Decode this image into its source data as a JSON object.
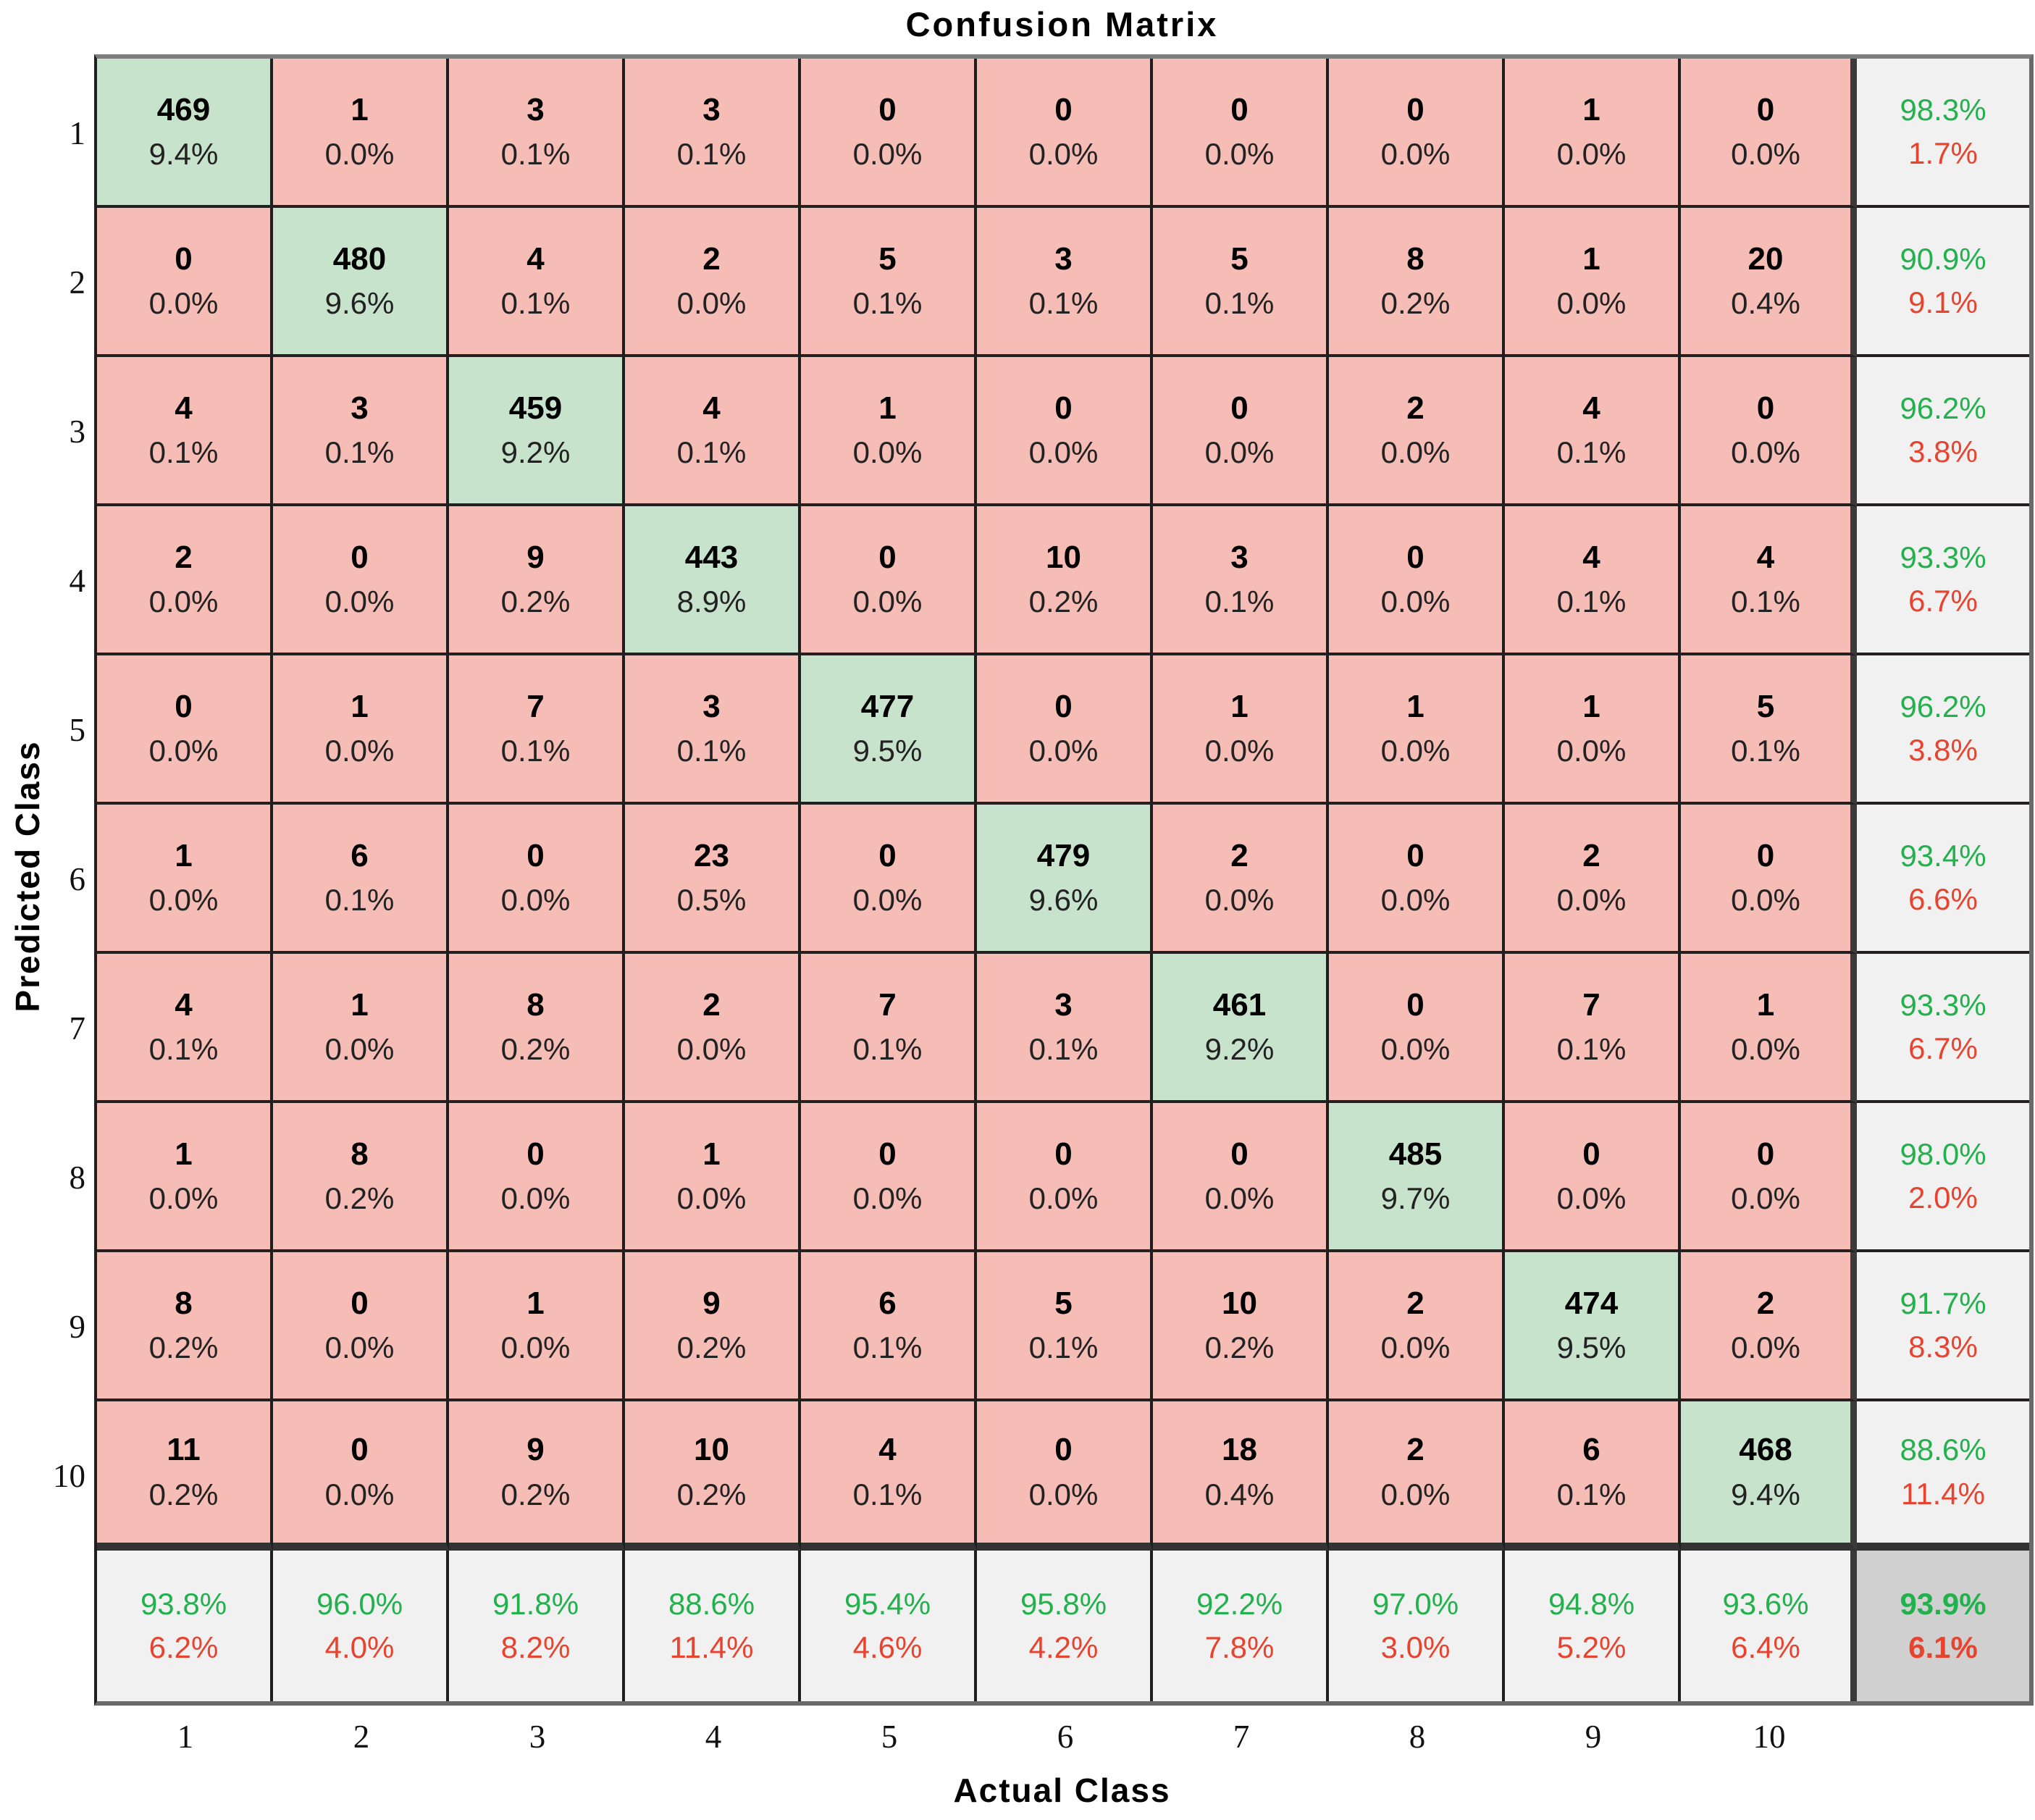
{
  "title": "Confusion Matrix",
  "axes": {
    "x": {
      "label": "Actual Class",
      "ticks": [
        "1",
        "2",
        "3",
        "4",
        "5",
        "6",
        "7",
        "8",
        "9",
        "10"
      ]
    },
    "y": {
      "label": "Predicted Class",
      "ticks": [
        "1",
        "2",
        "3",
        "4",
        "5",
        "6",
        "7",
        "8",
        "9",
        "10"
      ]
    }
  },
  "chart_data": {
    "type": "heatmap",
    "title": "Confusion Matrix",
    "xlabel": "Actual Class",
    "ylabel": "Predicted Class",
    "classes": [
      "1",
      "2",
      "3",
      "4",
      "5",
      "6",
      "7",
      "8",
      "9",
      "10"
    ],
    "counts": [
      [
        469,
        1,
        3,
        3,
        0,
        0,
        0,
        0,
        1,
        0
      ],
      [
        0,
        480,
        4,
        2,
        5,
        3,
        5,
        8,
        1,
        20
      ],
      [
        4,
        3,
        459,
        4,
        1,
        0,
        0,
        2,
        4,
        0
      ],
      [
        2,
        0,
        9,
        443,
        0,
        10,
        3,
        0,
        4,
        4
      ],
      [
        0,
        1,
        7,
        3,
        477,
        0,
        1,
        1,
        1,
        5
      ],
      [
        1,
        6,
        0,
        23,
        0,
        479,
        2,
        0,
        2,
        0
      ],
      [
        4,
        1,
        8,
        2,
        7,
        3,
        461,
        0,
        7,
        1
      ],
      [
        1,
        8,
        0,
        1,
        0,
        0,
        0,
        485,
        0,
        0
      ],
      [
        8,
        0,
        1,
        9,
        6,
        5,
        10,
        2,
        474,
        2
      ],
      [
        11,
        0,
        9,
        10,
        4,
        0,
        18,
        2,
        6,
        468
      ]
    ],
    "percents": [
      [
        "9.4%",
        "0.0%",
        "0.1%",
        "0.1%",
        "0.0%",
        "0.0%",
        "0.0%",
        "0.0%",
        "0.0%",
        "0.0%"
      ],
      [
        "0.0%",
        "9.6%",
        "0.1%",
        "0.0%",
        "0.1%",
        "0.1%",
        "0.1%",
        "0.2%",
        "0.0%",
        "0.4%"
      ],
      [
        "0.1%",
        "0.1%",
        "9.2%",
        "0.1%",
        "0.0%",
        "0.0%",
        "0.0%",
        "0.0%",
        "0.1%",
        "0.0%"
      ],
      [
        "0.0%",
        "0.0%",
        "0.2%",
        "8.9%",
        "0.0%",
        "0.2%",
        "0.1%",
        "0.0%",
        "0.1%",
        "0.1%"
      ],
      [
        "0.0%",
        "0.0%",
        "0.1%",
        "0.1%",
        "9.5%",
        "0.0%",
        "0.0%",
        "0.0%",
        "0.0%",
        "0.1%"
      ],
      [
        "0.0%",
        "0.1%",
        "0.0%",
        "0.5%",
        "0.0%",
        "9.6%",
        "0.0%",
        "0.0%",
        "0.0%",
        "0.0%"
      ],
      [
        "0.1%",
        "0.0%",
        "0.2%",
        "0.0%",
        "0.1%",
        "0.1%",
        "9.2%",
        "0.0%",
        "0.1%",
        "0.0%"
      ],
      [
        "0.0%",
        "0.2%",
        "0.0%",
        "0.0%",
        "0.0%",
        "0.0%",
        "0.0%",
        "9.7%",
        "0.0%",
        "0.0%"
      ],
      [
        "0.2%",
        "0.0%",
        "0.0%",
        "0.2%",
        "0.1%",
        "0.1%",
        "0.2%",
        "0.0%",
        "9.5%",
        "0.0%"
      ],
      [
        "0.2%",
        "0.0%",
        "0.2%",
        "0.2%",
        "0.1%",
        "0.0%",
        "0.4%",
        "0.0%",
        "0.1%",
        "9.4%"
      ]
    ],
    "row_summary": [
      {
        "green": "98.3%",
        "red": "1.7%"
      },
      {
        "green": "90.9%",
        "red": "9.1%"
      },
      {
        "green": "96.2%",
        "red": "3.8%"
      },
      {
        "green": "93.3%",
        "red": "6.7%"
      },
      {
        "green": "96.2%",
        "red": "3.8%"
      },
      {
        "green": "93.4%",
        "red": "6.6%"
      },
      {
        "green": "93.3%",
        "red": "6.7%"
      },
      {
        "green": "98.0%",
        "red": "2.0%"
      },
      {
        "green": "91.7%",
        "red": "8.3%"
      },
      {
        "green": "88.6%",
        "red": "11.4%"
      }
    ],
    "col_summary": [
      {
        "green": "93.8%",
        "red": "6.2%"
      },
      {
        "green": "96.0%",
        "red": "4.0%"
      },
      {
        "green": "91.8%",
        "red": "8.2%"
      },
      {
        "green": "88.6%",
        "red": "11.4%"
      },
      {
        "green": "95.4%",
        "red": "4.6%"
      },
      {
        "green": "95.8%",
        "red": "4.2%"
      },
      {
        "green": "92.2%",
        "red": "7.8%"
      },
      {
        "green": "97.0%",
        "red": "3.0%"
      },
      {
        "green": "94.8%",
        "red": "5.2%"
      },
      {
        "green": "93.6%",
        "red": "6.4%"
      }
    ],
    "total": {
      "green": "93.9%",
      "red": "6.1%"
    }
  },
  "colors": {
    "diagonal_cell": "#c8e3cc",
    "off_diagonal_cell": "#f6bcb6",
    "summary_cell": "#f1f1f1",
    "corner_cell": "#d0d0d0",
    "positive_text": "#23b14d",
    "negative_text": "#e8432f"
  }
}
